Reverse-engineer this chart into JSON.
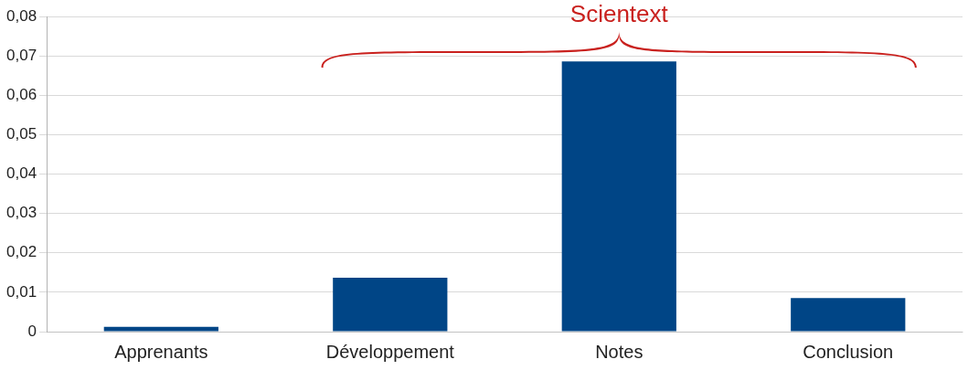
{
  "chart_data": {
    "type": "bar",
    "categories": [
      "Apprenants",
      "Développement",
      "Notes",
      "Conclusion"
    ],
    "values": [
      0.0012,
      0.0137,
      0.0686,
      0.0085
    ],
    "color": "#004586",
    "ylim": [
      0,
      0.08
    ],
    "yticks": [
      {
        "value": 0,
        "label": "0"
      },
      {
        "value": 0.01,
        "label": "0,01"
      },
      {
        "value": 0.02,
        "label": "0,02"
      },
      {
        "value": 0.03,
        "label": "0,03"
      },
      {
        "value": 0.04,
        "label": "0,04"
      },
      {
        "value": 0.05,
        "label": "0,05"
      },
      {
        "value": 0.06,
        "label": "0,06"
      },
      {
        "value": 0.07,
        "label": "0,07"
      },
      {
        "value": 0.08,
        "label": "0,08"
      }
    ],
    "grid": "y",
    "annotations": [
      "Scientext"
    ]
  }
}
